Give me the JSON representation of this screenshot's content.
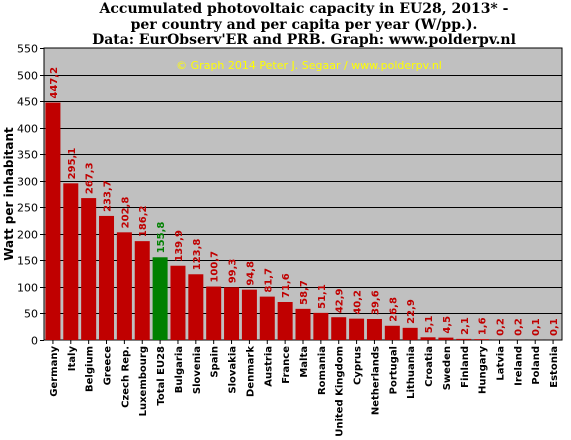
{
  "chart_data": {
    "type": "bar",
    "title": [
      "Accumulated photovoltaic capacity in EU28, 2013* -",
      "per country and per capita per year (W/pp.).",
      "Data: EurObserv'ER and PRB. Graph: www.polderpv.nl"
    ],
    "watermark": "© Graph 2014 Peter J. Segaar / www.polderpv.nl",
    "ylabel": "Watt per inhabitant",
    "xlabel": "",
    "ylim": [
      0,
      550
    ],
    "yticks": [
      0,
      50,
      100,
      150,
      200,
      250,
      300,
      350,
      400,
      450,
      500,
      550
    ],
    "grid": true,
    "categories": [
      "Germany",
      "Italy",
      "Belgium",
      "Greece",
      "Czech Rep.",
      "Luxembourg",
      "Total EU28",
      "Bulgaria",
      "Slovenia",
      "Spain",
      "Slovakia",
      "Denmark",
      "Austria",
      "France",
      "Malta",
      "Romania",
      "United Kingdom",
      "Cyprus",
      "Netherlands",
      "Portugal",
      "Lithuania",
      "Croatia",
      "Sweden",
      "Finland",
      "Hungary",
      "Latvia",
      "Ireland",
      "Poland",
      "Estonia"
    ],
    "values": [
      447.2,
      295.1,
      267.3,
      233.7,
      202.8,
      186.2,
      155.8,
      139.9,
      123.8,
      100.7,
      99.3,
      94.8,
      81.7,
      71.6,
      58.7,
      51.1,
      42.9,
      40.2,
      39.6,
      26.8,
      22.9,
      5.1,
      4.5,
      2.1,
      1.6,
      0.2,
      0.2,
      0.1,
      0.1
    ],
    "labels": [
      "447,2",
      "295,1",
      "267,3",
      "233,7",
      "202,8",
      "186,2",
      "155,8",
      "139,9",
      "123,8",
      "100,7",
      "99,3",
      "94,8",
      "81,7",
      "71,6",
      "58,7",
      "51,1",
      "42,9",
      "40,2",
      "39,6",
      "26,8",
      "22,9",
      "5,1",
      "4,5",
      "2,1",
      "1,6",
      "0,2",
      "0,2",
      "0,1",
      "0,1"
    ],
    "highlight_index": 6,
    "colors": {
      "bar": "#c00000",
      "highlight_bar": "#008000",
      "label": "#c00000",
      "highlight_label": "#008000",
      "plot_bg": "#c0c0c0",
      "grid": "#000000",
      "watermark": "#ffff00"
    }
  }
}
